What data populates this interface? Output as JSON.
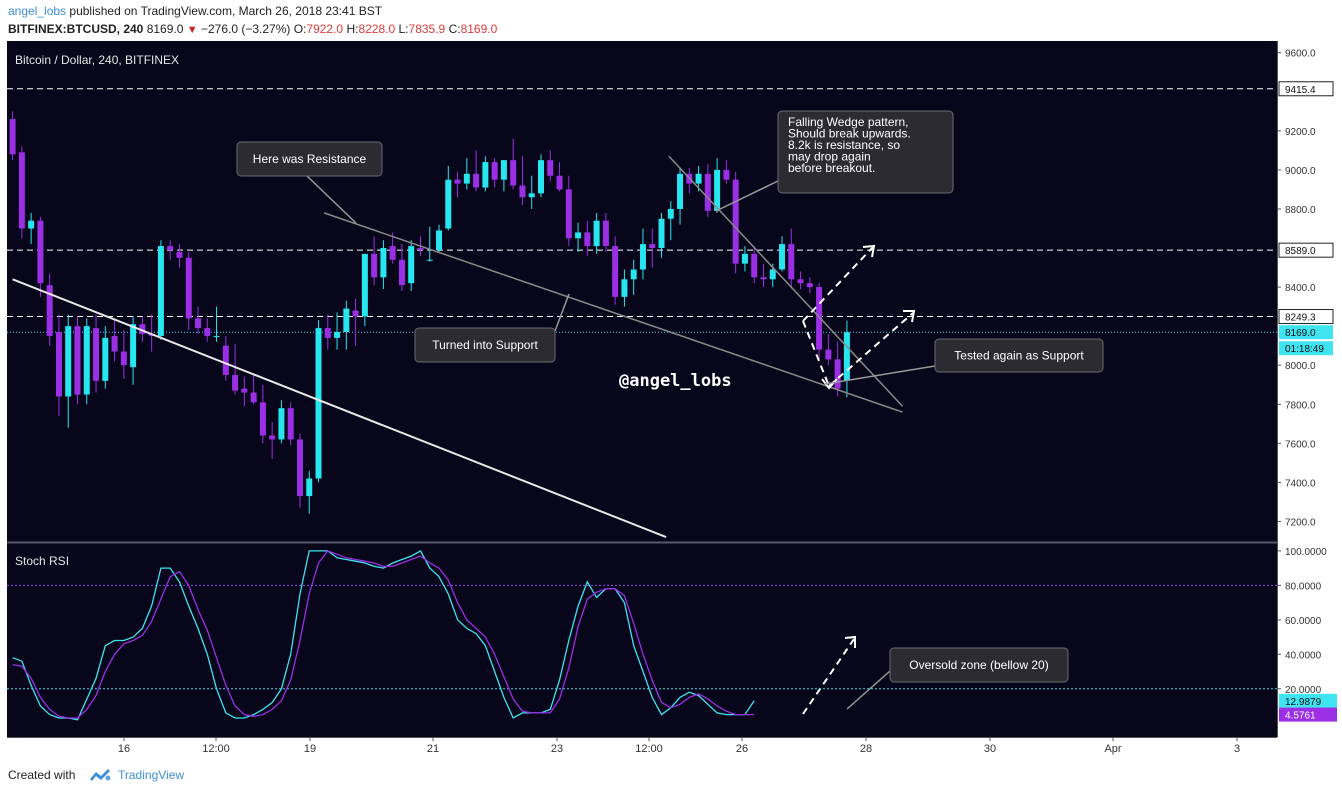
{
  "header": {
    "username": "angel_lobs",
    "published_text": " published on TradingView.com, March 26, 2018 23:41 BST",
    "symbol": "BITFINEX:BTCUSD, 240",
    "last": "8169.0",
    "change": "−276.0 (−3.27%)",
    "o_label": "O:",
    "o": "7922.0",
    "h_label": "H:",
    "h": "8228.0",
    "l_label": "L:",
    "l": "7835.9",
    "c_label": "C:",
    "c": "8169.0"
  },
  "footer": {
    "created_with": "Created with",
    "brand": "TradingView"
  },
  "watermark": "@angel_lobs",
  "colors": {
    "background": "#07061a",
    "bull": "#27e6f0",
    "bear": "#9b2fe6",
    "stoch_k": "#3fe4f0",
    "stoch_d": "#9b2fe6",
    "trend_white": "#e8e8e8",
    "wedge_gray": "#8a8a8a"
  },
  "chart_data": [
    {
      "type": "candlestick",
      "title": "Bitcoin / Dollar, 240, BITFINEX",
      "ylim": [
        7100,
        9660
      ],
      "y_ticks": [
        9600.0,
        9200.0,
        9000.0,
        8800.0,
        8400.0,
        8000.0,
        7800.0,
        7600.0,
        7400.0,
        7200.0
      ],
      "x_ticks": [
        "16",
        "12:00",
        "19",
        "21",
        "23",
        "12:00",
        "26",
        "28",
        "30",
        "Apr",
        "3"
      ],
      "price_lines": [
        {
          "value": 9415.4,
          "label": "9415.4",
          "style": "dashed"
        },
        {
          "value": 8589.0,
          "label": "8589.0",
          "style": "dashed"
        },
        {
          "value": 8249.3,
          "label": "8249.3",
          "style": "dashed"
        },
        {
          "value": 8169.0,
          "label": "8169.0",
          "style": "dotted-current"
        }
      ],
      "countdown": "01:18:49",
      "candles": [
        {
          "o": 9260,
          "h": 9300,
          "l": 9050,
          "c": 9080
        },
        {
          "o": 9090,
          "h": 9120,
          "l": 8650,
          "c": 8700
        },
        {
          "o": 8700,
          "h": 8780,
          "l": 8620,
          "c": 8740
        },
        {
          "o": 8740,
          "h": 8760,
          "l": 8350,
          "c": 8420
        },
        {
          "o": 8410,
          "h": 8470,
          "l": 8100,
          "c": 8150
        },
        {
          "o": 8170,
          "h": 8260,
          "l": 7740,
          "c": 7840
        },
        {
          "o": 7840,
          "h": 8260,
          "l": 7680,
          "c": 8200
        },
        {
          "o": 8200,
          "h": 8250,
          "l": 7800,
          "c": 7850
        },
        {
          "o": 7850,
          "h": 8240,
          "l": 7800,
          "c": 8200
        },
        {
          "o": 8190,
          "h": 8260,
          "l": 7860,
          "c": 7920
        },
        {
          "o": 7920,
          "h": 8200,
          "l": 7880,
          "c": 8140
        },
        {
          "o": 8150,
          "h": 8240,
          "l": 8020,
          "c": 8070
        },
        {
          "o": 8070,
          "h": 8180,
          "l": 7930,
          "c": 8000
        },
        {
          "o": 7990,
          "h": 8250,
          "l": 7900,
          "c": 8210
        },
        {
          "o": 8210,
          "h": 8250,
          "l": 8120,
          "c": 8160
        },
        {
          "o": 8160,
          "h": 8260,
          "l": 8070,
          "c": 8150
        },
        {
          "o": 8150,
          "h": 8640,
          "l": 8130,
          "c": 8610
        },
        {
          "o": 8610,
          "h": 8640,
          "l": 8540,
          "c": 8590
        },
        {
          "o": 8580,
          "h": 8620,
          "l": 8500,
          "c": 8550
        },
        {
          "o": 8550,
          "h": 8580,
          "l": 8180,
          "c": 8240
        },
        {
          "o": 8240,
          "h": 8300,
          "l": 8160,
          "c": 8190
        },
        {
          "o": 8190,
          "h": 8240,
          "l": 8120,
          "c": 8150
        },
        {
          "o": 8150,
          "h": 8300,
          "l": 8120,
          "c": 8150
        },
        {
          "o": 8100,
          "h": 8150,
          "l": 7920,
          "c": 7950
        },
        {
          "o": 7950,
          "h": 8110,
          "l": 7850,
          "c": 7870
        },
        {
          "o": 7880,
          "h": 7940,
          "l": 7790,
          "c": 7860
        },
        {
          "o": 7860,
          "h": 7950,
          "l": 7800,
          "c": 7810
        },
        {
          "o": 7810,
          "h": 7900,
          "l": 7600,
          "c": 7640
        },
        {
          "o": 7640,
          "h": 7710,
          "l": 7520,
          "c": 7620
        },
        {
          "o": 7620,
          "h": 7820,
          "l": 7600,
          "c": 7780
        },
        {
          "o": 7780,
          "h": 7810,
          "l": 7590,
          "c": 7620
        },
        {
          "o": 7620,
          "h": 7650,
          "l": 7270,
          "c": 7330
        },
        {
          "o": 7330,
          "h": 7460,
          "l": 7240,
          "c": 7420
        },
        {
          "o": 7420,
          "h": 8230,
          "l": 7400,
          "c": 8190
        },
        {
          "o": 8190,
          "h": 8260,
          "l": 8080,
          "c": 8140
        },
        {
          "o": 8140,
          "h": 8270,
          "l": 8080,
          "c": 8170
        },
        {
          "o": 8170,
          "h": 8330,
          "l": 8080,
          "c": 8290
        },
        {
          "o": 8280,
          "h": 8340,
          "l": 8100,
          "c": 8250
        },
        {
          "o": 8250,
          "h": 8570,
          "l": 8200,
          "c": 8570
        },
        {
          "o": 8570,
          "h": 8660,
          "l": 8410,
          "c": 8450
        },
        {
          "o": 8450,
          "h": 8640,
          "l": 8390,
          "c": 8600
        },
        {
          "o": 8610,
          "h": 8680,
          "l": 8520,
          "c": 8540
        },
        {
          "o": 8540,
          "h": 8620,
          "l": 8380,
          "c": 8410
        },
        {
          "o": 8420,
          "h": 8640,
          "l": 8380,
          "c": 8610
        },
        {
          "o": 8600,
          "h": 8660,
          "l": 8560,
          "c": 8590
        },
        {
          "o": 8540,
          "h": 8710,
          "l": 8530,
          "c": 8540
        },
        {
          "o": 8590,
          "h": 8720,
          "l": 8580,
          "c": 8690
        },
        {
          "o": 8700,
          "h": 9020,
          "l": 8690,
          "c": 8950
        },
        {
          "o": 8950,
          "h": 8990,
          "l": 8860,
          "c": 8930
        },
        {
          "o": 8930,
          "h": 9060,
          "l": 8900,
          "c": 8980
        },
        {
          "o": 8980,
          "h": 9100,
          "l": 8890,
          "c": 8910
        },
        {
          "o": 8910,
          "h": 9070,
          "l": 8890,
          "c": 9040
        },
        {
          "o": 9040,
          "h": 9060,
          "l": 8910,
          "c": 8950
        },
        {
          "o": 8950,
          "h": 9050,
          "l": 8890,
          "c": 9050
        },
        {
          "o": 9050,
          "h": 9160,
          "l": 8900,
          "c": 8920
        },
        {
          "o": 8920,
          "h": 9070,
          "l": 8820,
          "c": 8860
        },
        {
          "o": 8860,
          "h": 8970,
          "l": 8800,
          "c": 8880
        },
        {
          "o": 8880,
          "h": 9080,
          "l": 8860,
          "c": 9050
        },
        {
          "o": 9050,
          "h": 9100,
          "l": 8940,
          "c": 8970
        },
        {
          "o": 8970,
          "h": 9040,
          "l": 8890,
          "c": 8900
        },
        {
          "o": 8900,
          "h": 8970,
          "l": 8610,
          "c": 8650
        },
        {
          "o": 8650,
          "h": 8730,
          "l": 8580,
          "c": 8680
        },
        {
          "o": 8680,
          "h": 8740,
          "l": 8560,
          "c": 8610
        },
        {
          "o": 8610,
          "h": 8780,
          "l": 8570,
          "c": 8740
        },
        {
          "o": 8740,
          "h": 8780,
          "l": 8580,
          "c": 8610
        },
        {
          "o": 8610,
          "h": 8660,
          "l": 8310,
          "c": 8350
        },
        {
          "o": 8350,
          "h": 8490,
          "l": 8300,
          "c": 8440
        },
        {
          "o": 8440,
          "h": 8540,
          "l": 8360,
          "c": 8490
        },
        {
          "o": 8490,
          "h": 8700,
          "l": 8440,
          "c": 8620
        },
        {
          "o": 8620,
          "h": 8700,
          "l": 8500,
          "c": 8600
        },
        {
          "o": 8600,
          "h": 8780,
          "l": 8550,
          "c": 8750
        },
        {
          "o": 8750,
          "h": 8840,
          "l": 8640,
          "c": 8800
        },
        {
          "o": 8800,
          "h": 9010,
          "l": 8720,
          "c": 8980
        },
        {
          "o": 8980,
          "h": 9010,
          "l": 8880,
          "c": 8930
        },
        {
          "o": 8930,
          "h": 9020,
          "l": 8890,
          "c": 8980
        },
        {
          "o": 8980,
          "h": 9030,
          "l": 8760,
          "c": 8790
        },
        {
          "o": 8790,
          "h": 9060,
          "l": 8780,
          "c": 9000
        },
        {
          "o": 9000,
          "h": 9050,
          "l": 8930,
          "c": 8950
        },
        {
          "o": 8950,
          "h": 8990,
          "l": 8470,
          "c": 8520
        },
        {
          "o": 8520,
          "h": 8610,
          "l": 8480,
          "c": 8570
        },
        {
          "o": 8570,
          "h": 8610,
          "l": 8420,
          "c": 8450
        },
        {
          "o": 8450,
          "h": 8520,
          "l": 8400,
          "c": 8440
        },
        {
          "o": 8440,
          "h": 8520,
          "l": 8400,
          "c": 8490
        },
        {
          "o": 8490,
          "h": 8660,
          "l": 8480,
          "c": 8620
        },
        {
          "o": 8620,
          "h": 8700,
          "l": 8400,
          "c": 8440
        },
        {
          "o": 8440,
          "h": 8480,
          "l": 8390,
          "c": 8420
        },
        {
          "o": 8420,
          "h": 8450,
          "l": 8370,
          "c": 8400
        },
        {
          "o": 8400,
          "h": 8420,
          "l": 8020,
          "c": 8080
        },
        {
          "o": 8080,
          "h": 8160,
          "l": 8000,
          "c": 8030
        },
        {
          "o": 8030,
          "h": 8120,
          "l": 7840,
          "c": 7880
        },
        {
          "o": 7922,
          "h": 8228,
          "l": 7836,
          "c": 8169
        }
      ],
      "trendlines": [
        {
          "name": "white-downtrend",
          "color": "white",
          "p1": [
            0,
            8440
          ],
          "p2": [
            70.5,
            7120
          ]
        },
        {
          "name": "resistance-support-line",
          "color": "gray",
          "p1": [
            33.6,
            8780
          ],
          "p2": [
            96,
            7760
          ]
        },
        {
          "name": "wedge-upper",
          "color": "gray",
          "p1": [
            70.8,
            9070
          ],
          "p2": [
            96,
            7790
          ]
        }
      ],
      "annotations": [
        {
          "name": "here-was-resistance",
          "text": "Here was Resistance"
        },
        {
          "name": "turned-into-support",
          "text": "Turned into Support"
        },
        {
          "name": "falling-wedge",
          "text": "Falling Wedge pattern,\nShould break upwards.\n8.2k is resistance, so\nmay drop again\nbefore breakout."
        },
        {
          "name": "tested-again",
          "text": "Tested again as Support"
        }
      ]
    },
    {
      "type": "line",
      "title": "Stoch RSI",
      "ylim": [
        -8,
        104
      ],
      "y_ticks": [
        100.0,
        80.0,
        60.0,
        40.0,
        20.0
      ],
      "y_tick_labels": [
        "100.0000",
        "80.0000",
        "60.0000",
        "40.0000",
        "20.0000"
      ],
      "bands": [
        80,
        20
      ],
      "series": [
        {
          "name": "K",
          "values": [
            38,
            36,
            22,
            10,
            5,
            3,
            3,
            2,
            14,
            26,
            45,
            48,
            48,
            50,
            55,
            68,
            90,
            90,
            82,
            68,
            55,
            40,
            20,
            6,
            3,
            3,
            5,
            8,
            12,
            20,
            40,
            75,
            100,
            100,
            100,
            96,
            95,
            94,
            93,
            91,
            90,
            93,
            95,
            97,
            100,
            90,
            85,
            75,
            60,
            55,
            52,
            45,
            30,
            15,
            3,
            6,
            6,
            6,
            8,
            25,
            48,
            68,
            82,
            73,
            78,
            78,
            70,
            45,
            30,
            15,
            5,
            9,
            15,
            18,
            16,
            11,
            6,
            5,
            5,
            5,
            13
          ]
        },
        {
          "name": "D",
          "values": [
            34,
            33,
            26,
            15,
            8,
            4,
            3,
            3,
            8,
            16,
            30,
            40,
            46,
            48,
            51,
            59,
            72,
            85,
            88,
            80,
            66,
            54,
            38,
            22,
            10,
            5,
            4,
            5,
            8,
            13,
            25,
            48,
            75,
            93,
            100,
            98,
            96,
            95,
            94,
            93,
            91,
            91,
            93,
            95,
            97,
            93,
            90,
            83,
            70,
            60,
            55,
            50,
            40,
            27,
            14,
            7,
            6,
            6,
            6,
            14,
            32,
            56,
            72,
            76,
            78,
            78,
            74,
            58,
            40,
            25,
            12,
            9,
            11,
            15,
            17,
            14,
            10,
            7,
            5,
            5,
            5
          ]
        }
      ],
      "last_values": [
        {
          "label": "12.9879",
          "series": "K"
        },
        {
          "label": "4.5761",
          "series": "D"
        }
      ]
    }
  ]
}
